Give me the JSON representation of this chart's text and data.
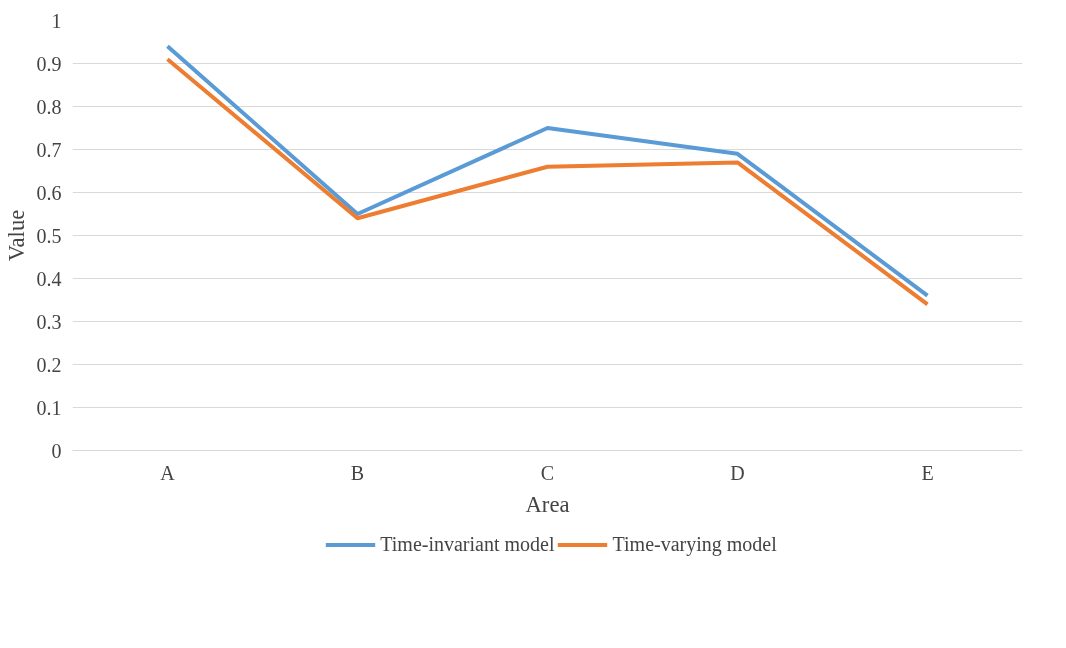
{
  "chart_data": {
    "type": "line",
    "xlabel": "Area",
    "ylabel": "Value",
    "categories": [
      "A",
      "B",
      "C",
      "D",
      "E"
    ],
    "series": [
      {
        "name": "Time-invariant model",
        "color": "#5b9bd5",
        "values": [
          0.94,
          0.55,
          0.75,
          0.69,
          0.36
        ]
      },
      {
        "name": "Time-varying model",
        "color": "#ed7d31",
        "values": [
          0.91,
          0.54,
          0.66,
          0.67,
          0.34
        ]
      }
    ],
    "ylim": [
      0,
      1
    ],
    "yticks": [
      0,
      0.1,
      0.2,
      0.3,
      0.4,
      0.5,
      0.6,
      0.7,
      0.8,
      0.9,
      1
    ],
    "grid": "y",
    "legend": "bottom",
    "marker": "none",
    "line_style": "solid"
  }
}
